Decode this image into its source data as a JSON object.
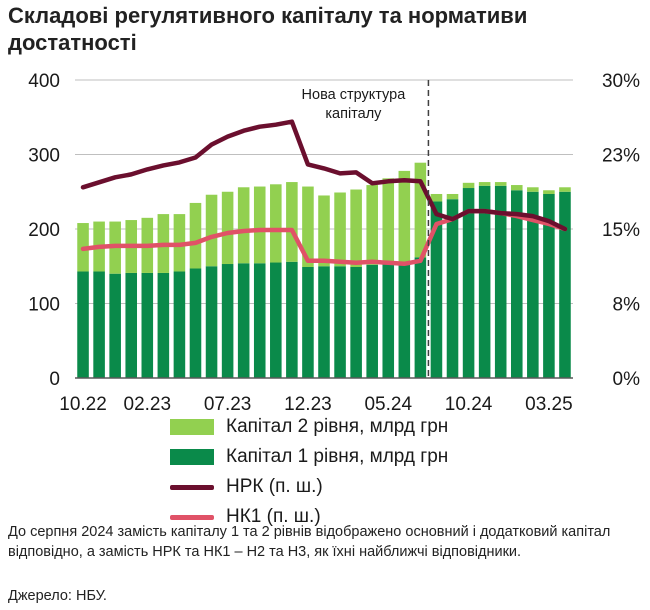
{
  "title": "Складові регулятивного капіталу та нормативи достатності",
  "annotation": "Нова структура капіталу",
  "note": "До серпня 2024 замість капіталу 1 та 2 рівнів відображено основний і додатковий капітал відповідно, а замість НРК та НК1 – Н2 та Н3, як їхні найближчі відповідники.",
  "source": "Джерело: НБУ.",
  "legend": [
    {
      "label": "Капітал 2 рівня, млрд грн",
      "color": "#92d050",
      "kind": "bar"
    },
    {
      "label": "Капітал 1 рівня, млрд грн",
      "color": "#0a8a4a",
      "kind": "bar"
    },
    {
      "label": "НРК (п. ш.)",
      "color": "#6b0f2e",
      "kind": "line"
    },
    {
      "label": "НК1 (п. ш.)",
      "color": "#e05267",
      "kind": "line"
    }
  ],
  "chart_data": {
    "type": "bar",
    "stacked": true,
    "categories": [
      "10.22",
      "11.22",
      "12.22",
      "01.23",
      "02.23",
      "03.23",
      "04.23",
      "05.23",
      "06.23",
      "07.23",
      "08.23",
      "09.23",
      "10.23",
      "11.23",
      "12.23",
      "01.24",
      "02.24",
      "03.24",
      "04.24",
      "05.24",
      "06.24",
      "07.24",
      "08.24",
      "09.24",
      "10.24",
      "11.24",
      "12.24",
      "01.25",
      "02.25",
      "03.25",
      "04.25"
    ],
    "x_tick_labels": [
      "10.22",
      "02.23",
      "07.23",
      "12.23",
      "05.24",
      "10.24",
      "03.25"
    ],
    "y_left": {
      "lim": [
        0,
        400
      ],
      "ticks": [
        0,
        100,
        200,
        300,
        400
      ]
    },
    "y_right": {
      "lim": [
        0,
        30
      ],
      "ticks": [
        0,
        7.5,
        15,
        22.5,
        30
      ],
      "tick_labels": [
        "0%",
        "8%",
        "15%",
        "23%",
        "30%"
      ]
    },
    "divider_after_category": "07.24",
    "series": [
      {
        "name": "Капітал 1 рівня, млрд грн",
        "axis": "left",
        "kind": "bar",
        "values": [
          143,
          143,
          140,
          141,
          141,
          141,
          143,
          147,
          150,
          153,
          154,
          154,
          155,
          156,
          149,
          150,
          150,
          149,
          152,
          153,
          155,
          162,
          237,
          240,
          255,
          258,
          258,
          252,
          250,
          247,
          250
        ]
      },
      {
        "name": "Капітал 2 рівня, млрд грн",
        "axis": "left",
        "kind": "bar",
        "values": [
          65,
          67,
          70,
          71,
          74,
          79,
          77,
          88,
          96,
          97,
          102,
          103,
          105,
          107,
          108,
          95,
          99,
          104,
          107,
          115,
          123,
          127,
          10,
          7,
          7,
          5,
          5,
          7,
          6,
          5,
          6
        ]
      },
      {
        "name": "НРК (п. ш.)",
        "axis": "right",
        "kind": "line",
        "values": [
          19.2,
          19.7,
          20.2,
          20.5,
          21.0,
          21.4,
          21.7,
          22.2,
          23.5,
          24.3,
          24.9,
          25.3,
          25.5,
          25.8,
          21.5,
          21.1,
          20.6,
          20.7,
          19.6,
          19.8,
          19.9,
          19.8,
          16.5,
          16.0,
          16.8,
          16.8,
          16.6,
          16.5,
          16.3,
          15.8,
          15.0
        ]
      },
      {
        "name": "НК1 (п. ш.)",
        "axis": "right",
        "kind": "line",
        "values": [
          13.0,
          13.2,
          13.3,
          13.3,
          13.3,
          13.4,
          13.4,
          13.6,
          14.2,
          14.6,
          14.8,
          14.9,
          14.9,
          14.9,
          11.8,
          11.8,
          11.7,
          11.6,
          11.7,
          11.6,
          11.5,
          11.8,
          15.5,
          16.0,
          16.8,
          16.8,
          16.6,
          16.3,
          15.9,
          15.5,
          15.0
        ]
      }
    ]
  }
}
